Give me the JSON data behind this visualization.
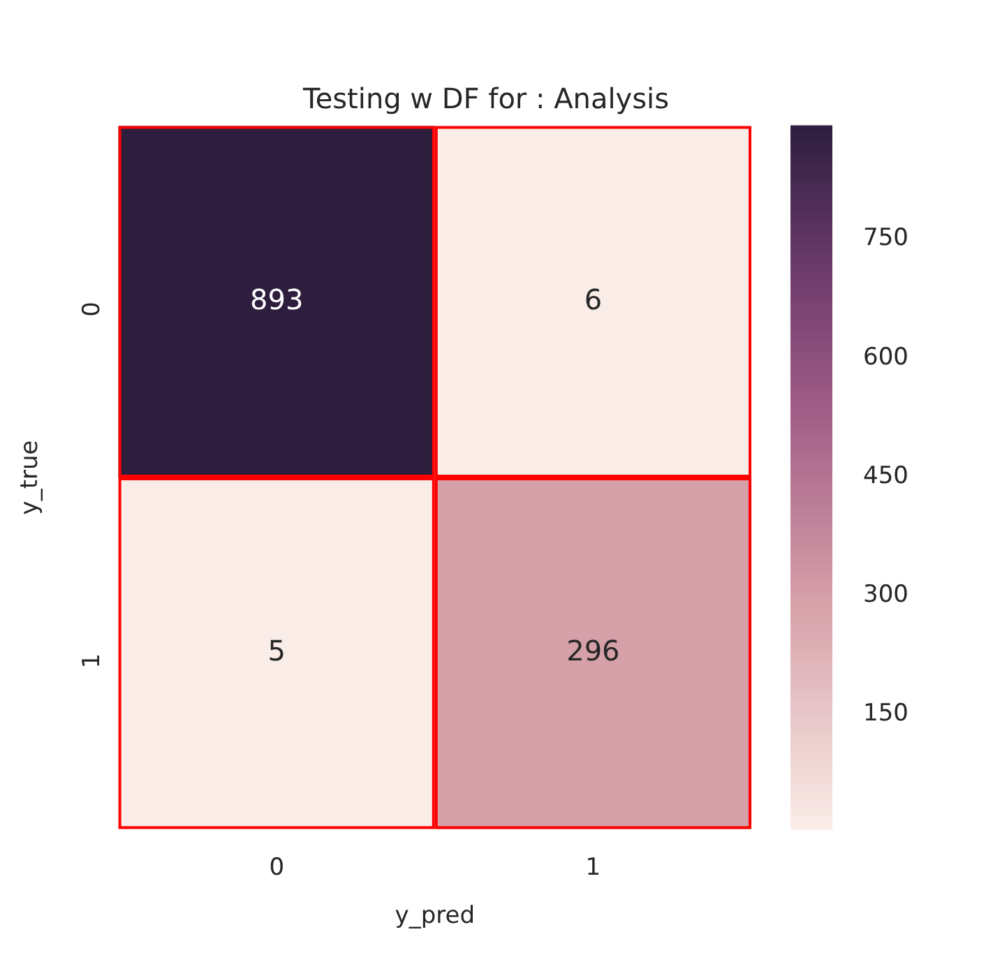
{
  "chart_data": {
    "type": "heatmap",
    "title": "Testing w DF for : Analysis",
    "xlabel": "y_pred",
    "ylabel": "y_true",
    "categories": [
      "0",
      "1"
    ],
    "y_categories": [
      "0",
      "1"
    ],
    "cells": [
      [
        893,
        6
      ],
      [
        5,
        296
      ]
    ],
    "clim": [
      5,
      893
    ],
    "cticks": [
      150,
      300,
      450,
      600,
      750
    ],
    "data_labels": true
  }
}
